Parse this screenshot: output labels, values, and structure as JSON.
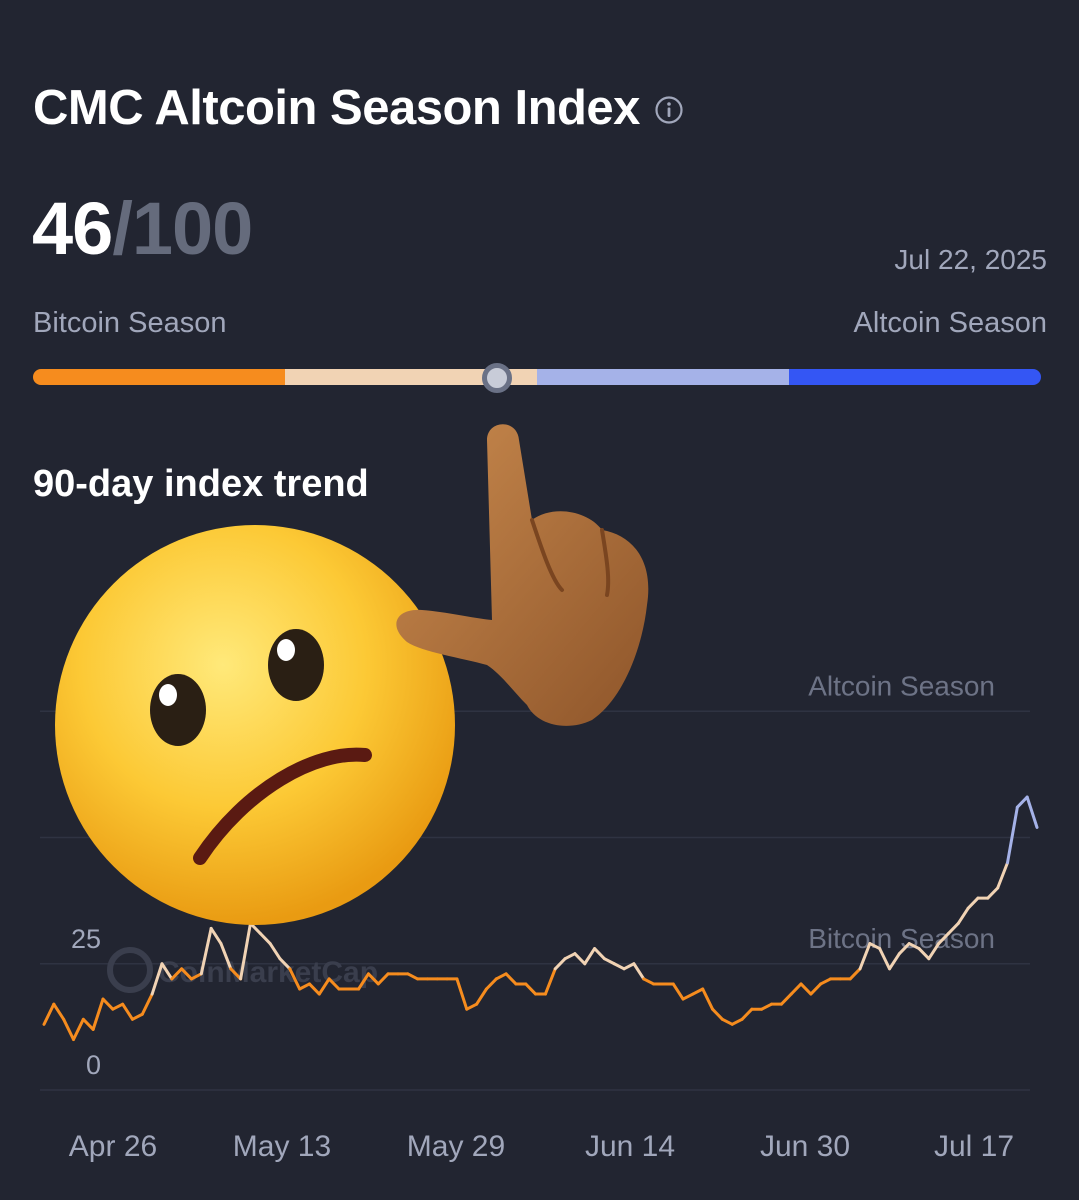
{
  "header": {
    "title": "CMC Altcoin Season Index",
    "info_icon": "info-circle-icon"
  },
  "score": {
    "value": "46",
    "max": "/100"
  },
  "date": "Jul 22, 2025",
  "gauge": {
    "left_label": "Bitcoin Season",
    "right_label": "Altcoin Season",
    "value": 46,
    "segment_colors": [
      "#f68c1e",
      "#f1d3b4",
      "#a5b2e8",
      "#3456f4"
    ]
  },
  "trend_title": "90-day index trend",
  "watermark": "CoinMarketCap",
  "overlay": {
    "face": "confused-face-emoji",
    "hand": "pointing-hand-emoji"
  },
  "chart_data": {
    "type": "line",
    "title": "90-day index trend",
    "ylim": [
      0,
      100
    ],
    "y_ticks": [
      "0",
      "25"
    ],
    "x_ticks": [
      "Apr 26",
      "May 13",
      "May 29",
      "Jun 14",
      "Jun 30",
      "Jul 17"
    ],
    "grid": true,
    "bands": [
      {
        "label": "Altcoin Season",
        "value": 75
      },
      {
        "label": "Bitcoin Season",
        "value": 25
      }
    ],
    "colors": {
      "low": "#f68c1e",
      "mid": "#f1d3b4",
      "high": "#a5b2e8"
    },
    "series": [
      {
        "values": [
          13,
          17,
          14,
          10,
          14,
          12,
          18,
          16,
          17,
          14,
          15,
          19,
          25,
          22,
          24,
          22,
          23,
          32,
          29,
          24,
          22,
          33,
          31,
          29,
          26,
          24,
          20,
          21,
          19,
          22,
          20,
          20,
          20,
          23,
          21,
          23,
          23,
          23,
          22,
          22,
          22,
          22,
          22,
          16,
          17,
          20,
          22,
          23,
          21,
          21,
          19,
          19,
          24,
          26,
          27,
          25,
          28,
          26,
          25,
          24,
          25,
          22,
          21,
          21,
          21,
          18,
          19,
          20,
          16,
          14,
          13,
          14,
          16,
          16,
          17,
          17,
          19,
          21,
          19,
          21,
          22,
          22,
          22,
          24,
          29,
          28,
          24,
          27,
          29,
          28,
          26,
          29,
          31,
          33,
          36,
          38,
          38,
          40,
          45,
          56,
          58,
          52
        ]
      }
    ]
  }
}
